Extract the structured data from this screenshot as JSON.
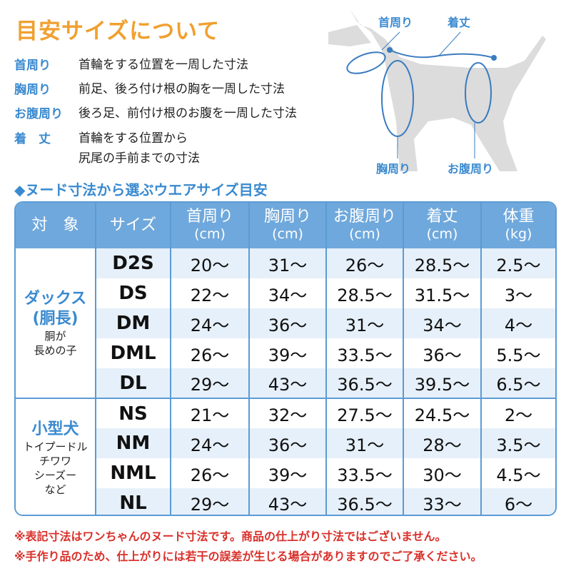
{
  "title": "目安サイズについて",
  "definitions": [
    {
      "term": "首周り",
      "desc": "首輪をする位置を一周した寸法"
    },
    {
      "term": "胸周り",
      "desc": "前足、後ろ付け根の胸を一周した寸法"
    },
    {
      "term": "お腹周り",
      "desc": "後ろ足、前付け根のお腹を一周した寸法"
    },
    {
      "term": "着　丈",
      "desc": "首輪をする位置から",
      "desc2": "尻尾の手前までの寸法"
    }
  ],
  "diagram": {
    "neck": "首周り",
    "length": "着丈",
    "chest": "胸周り",
    "belly": "お腹周り"
  },
  "subtitle": "◆ヌード寸法から選ぶウエアサイズ目安",
  "headers": [
    {
      "label": "対　象",
      "unit": ""
    },
    {
      "label": "サイズ",
      "unit": ""
    },
    {
      "label": "首周り",
      "unit": "(cm)"
    },
    {
      "label": "胸周り",
      "unit": "(cm)"
    },
    {
      "label": "お腹周り",
      "unit": "(cm)"
    },
    {
      "label": "着丈",
      "unit": "(cm)"
    },
    {
      "label": "体重",
      "unit": "(kg)"
    }
  ],
  "groups": [
    {
      "name": "ダックス\n(胴長)",
      "name1": "ダックス",
      "name2": "(胴長)",
      "note": "胴が\n長めの子",
      "note1": "胴が",
      "note2": "長めの子",
      "rows": [
        [
          "D2S",
          "20〜",
          "31〜",
          "26〜",
          "28.5〜",
          "2.5〜"
        ],
        [
          "DS",
          "22〜",
          "34〜",
          "28.5〜",
          "31.5〜",
          "3〜"
        ],
        [
          "DM",
          "24〜",
          "36〜",
          "31〜",
          "34〜",
          "4〜"
        ],
        [
          "DML",
          "26〜",
          "39〜",
          "33.5〜",
          "36〜",
          "5.5〜"
        ],
        [
          "DL",
          "29〜",
          "43〜",
          "36.5〜",
          "39.5〜",
          "6.5〜"
        ]
      ]
    },
    {
      "name1": "小型犬",
      "note1": "トイプードル",
      "note2": "チワワ",
      "note3": "シーズー",
      "note4": "など",
      "rows": [
        [
          "NS",
          "21〜",
          "32〜",
          "27.5〜",
          "24.5〜",
          "2〜"
        ],
        [
          "NM",
          "24〜",
          "36〜",
          "31〜",
          "28〜",
          "3.5〜"
        ],
        [
          "NML",
          "26〜",
          "39〜",
          "33.5〜",
          "30〜",
          "4.5〜"
        ],
        [
          "NL",
          "29〜",
          "43〜",
          "36.5〜",
          "33〜",
          "6〜"
        ]
      ]
    }
  ],
  "notes": [
    "※表記寸法はワンちゃんのヌード寸法です。商品の仕上がり寸法ではございません。",
    "※手作り品のため、仕上がりには若干の誤差が生じる場合がありますのでご了承ください。"
  ],
  "colors": {
    "accent": "#3a8ad0",
    "title": "#f0a030",
    "header": "#6fa8dc",
    "note": "#d9302a"
  }
}
